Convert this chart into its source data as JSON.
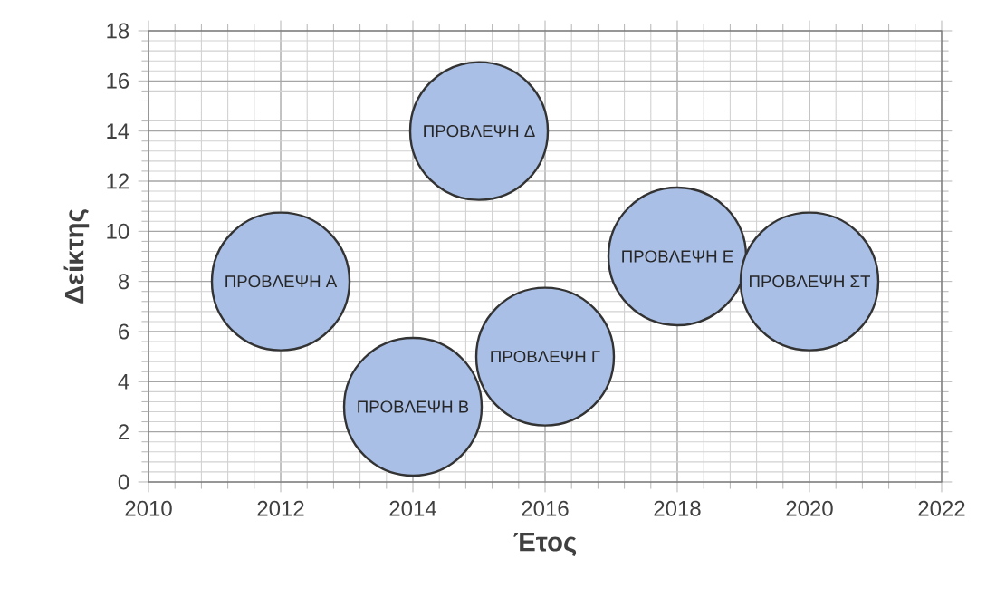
{
  "chart_data": {
    "type": "bubble",
    "xlabel": "Έτος",
    "ylabel": "Δείκτης",
    "x": [
      2012,
      2014,
      2016,
      2015,
      2018,
      2020
    ],
    "values": [
      8,
      3,
      5,
      14,
      9,
      8
    ],
    "sizes": [
      1,
      1,
      1,
      1,
      1,
      1
    ],
    "color": "#a9bfe6",
    "xlim": [
      2010,
      2022
    ],
    "xticks": [
      2010,
      2012,
      2014,
      2016,
      2018,
      2020,
      2022
    ],
    "ylim": [
      0,
      18
    ],
    "yticks": [
      0,
      2,
      4,
      6,
      8,
      10,
      12,
      14,
      16,
      18
    ],
    "grid": true,
    "annotations": [
      {
        "text": "ΠΡΟΒΛΕΨΗ Α",
        "x": 2012,
        "y": 8
      },
      {
        "text": "ΠΡΟΒΛΕΨΗ Β",
        "x": 2014,
        "y": 3
      },
      {
        "text": "ΠΡΟΒΛΕΨΗ Γ",
        "x": 2016,
        "y": 5
      },
      {
        "text": "ΠΡΟΒΛΕΨΗ Δ",
        "x": 2015,
        "y": 14
      },
      {
        "text": "ΠΡΟΒΛΕΨΗ Ε",
        "x": 2018,
        "y": 9
      },
      {
        "text": "ΠΡΟΒΛΕΨΗ ΣΤ",
        "x": 2020,
        "y": 8
      }
    ]
  }
}
